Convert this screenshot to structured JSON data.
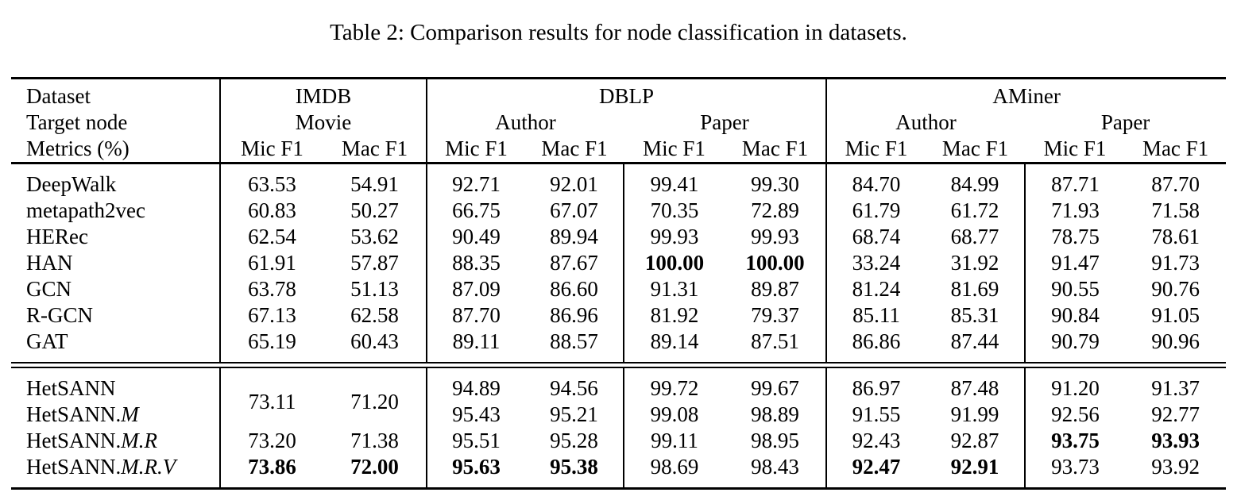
{
  "caption": "Table 2: Comparison results for node classification in datasets.",
  "table": {
    "header": {
      "row1": {
        "label": "Dataset",
        "groups": [
          "IMDB",
          "DBLP",
          "AMiner"
        ]
      },
      "row2": {
        "label": "Target node",
        "targets": [
          "Movie",
          "Author",
          "Paper",
          "Author",
          "Paper"
        ]
      },
      "row3": {
        "label": "Metrics (%)",
        "metrics": [
          "Mic F1",
          "Mac F1",
          "Mic F1",
          "Mac F1",
          "Mic F1",
          "Mac F1",
          "Mic F1",
          "Mac F1",
          "Mic F1",
          "Mac F1"
        ]
      }
    },
    "sections": [
      {
        "rows": [
          {
            "label": {
              "base": "DeepWalk",
              "suffix": ""
            },
            "offset": 0,
            "cells": [
              {
                "t": "63.53"
              },
              {
                "t": "54.91"
              },
              {
                "t": "92.71"
              },
              {
                "t": "92.01"
              },
              {
                "t": "99.41"
              },
              {
                "t": "99.30"
              },
              {
                "t": "84.70"
              },
              {
                "t": "84.99"
              },
              {
                "t": "87.71"
              },
              {
                "t": "87.70"
              }
            ]
          },
          {
            "label": {
              "base": "metapath2vec",
              "suffix": ""
            },
            "offset": 0,
            "cells": [
              {
                "t": "60.83"
              },
              {
                "t": "50.27"
              },
              {
                "t": "66.75"
              },
              {
                "t": "67.07"
              },
              {
                "t": "70.35"
              },
              {
                "t": "72.89"
              },
              {
                "t": "61.79"
              },
              {
                "t": "61.72"
              },
              {
                "t": "71.93"
              },
              {
                "t": "71.58"
              }
            ]
          },
          {
            "label": {
              "base": "HERec",
              "suffix": ""
            },
            "offset": 0,
            "cells": [
              {
                "t": "62.54"
              },
              {
                "t": "53.62"
              },
              {
                "t": "90.49"
              },
              {
                "t": "89.94"
              },
              {
                "t": "99.93"
              },
              {
                "t": "99.93"
              },
              {
                "t": "68.74"
              },
              {
                "t": "68.77"
              },
              {
                "t": "78.75"
              },
              {
                "t": "78.61"
              }
            ]
          },
          {
            "label": {
              "base": "HAN",
              "suffix": ""
            },
            "offset": 0,
            "cells": [
              {
                "t": "61.91"
              },
              {
                "t": "57.87"
              },
              {
                "t": "88.35"
              },
              {
                "t": "87.67"
              },
              {
                "t": "100.00",
                "b": true
              },
              {
                "t": "100.00",
                "b": true
              },
              {
                "t": "33.24"
              },
              {
                "t": "31.92"
              },
              {
                "t": "91.47"
              },
              {
                "t": "91.73"
              }
            ]
          },
          {
            "label": {
              "base": "GCN",
              "suffix": ""
            },
            "offset": 0,
            "cells": [
              {
                "t": "63.78"
              },
              {
                "t": "51.13"
              },
              {
                "t": "87.09"
              },
              {
                "t": "86.60"
              },
              {
                "t": "91.31"
              },
              {
                "t": "89.87"
              },
              {
                "t": "81.24"
              },
              {
                "t": "81.69"
              },
              {
                "t": "90.55"
              },
              {
                "t": "90.76"
              }
            ]
          },
          {
            "label": {
              "base": "R-GCN",
              "suffix": ""
            },
            "offset": 0,
            "cells": [
              {
                "t": "67.13"
              },
              {
                "t": "62.58"
              },
              {
                "t": "87.70"
              },
              {
                "t": "86.96"
              },
              {
                "t": "81.92"
              },
              {
                "t": "79.37"
              },
              {
                "t": "85.11"
              },
              {
                "t": "85.31"
              },
              {
                "t": "90.84"
              },
              {
                "t": "91.05"
              }
            ]
          },
          {
            "label": {
              "base": "GAT",
              "suffix": ""
            },
            "offset": 0,
            "cells": [
              {
                "t": "65.19"
              },
              {
                "t": "60.43"
              },
              {
                "t": "89.11"
              },
              {
                "t": "88.57"
              },
              {
                "t": "89.14"
              },
              {
                "t": "87.51"
              },
              {
                "t": "86.86"
              },
              {
                "t": "87.44"
              },
              {
                "t": "90.79"
              },
              {
                "t": "90.96"
              }
            ]
          }
        ]
      },
      {
        "rows": [
          {
            "label": {
              "base": "HetSANN",
              "suffix": ""
            },
            "offset": 0,
            "cells": [
              {
                "t": "73.11",
                "rs": 2
              },
              {
                "t": "71.20",
                "rs": 2
              },
              {
                "t": "94.89"
              },
              {
                "t": "94.56"
              },
              {
                "t": "99.72"
              },
              {
                "t": "99.67"
              },
              {
                "t": "86.97"
              },
              {
                "t": "87.48"
              },
              {
                "t": "91.20"
              },
              {
                "t": "91.37"
              }
            ]
          },
          {
            "label": {
              "base": "HetSANN.",
              "suffix": "M"
            },
            "offset": 2,
            "cells": [
              {
                "t": "95.43"
              },
              {
                "t": "95.21"
              },
              {
                "t": "99.08"
              },
              {
                "t": "98.89"
              },
              {
                "t": "91.55"
              },
              {
                "t": "91.99"
              },
              {
                "t": "92.56"
              },
              {
                "t": "92.77"
              }
            ]
          },
          {
            "label": {
              "base": "HetSANN.",
              "suffix": "M.R"
            },
            "offset": 0,
            "cells": [
              {
                "t": "73.20"
              },
              {
                "t": "71.38"
              },
              {
                "t": "95.51"
              },
              {
                "t": "95.28"
              },
              {
                "t": "99.11"
              },
              {
                "t": "98.95"
              },
              {
                "t": "92.43"
              },
              {
                "t": "92.87"
              },
              {
                "t": "93.75",
                "b": true
              },
              {
                "t": "93.93",
                "b": true
              }
            ]
          },
          {
            "label": {
              "base": "HetSANN.",
              "suffix": "M.R.V"
            },
            "offset": 0,
            "cells": [
              {
                "t": "73.86",
                "b": true
              },
              {
                "t": "72.00",
                "b": true
              },
              {
                "t": "95.63",
                "b": true
              },
              {
                "t": "95.38",
                "b": true
              },
              {
                "t": "98.69"
              },
              {
                "t": "98.43"
              },
              {
                "t": "92.47",
                "b": true
              },
              {
                "t": "92.91",
                "b": true
              },
              {
                "t": "93.73"
              },
              {
                "t": "93.92"
              }
            ]
          }
        ]
      }
    ]
  }
}
